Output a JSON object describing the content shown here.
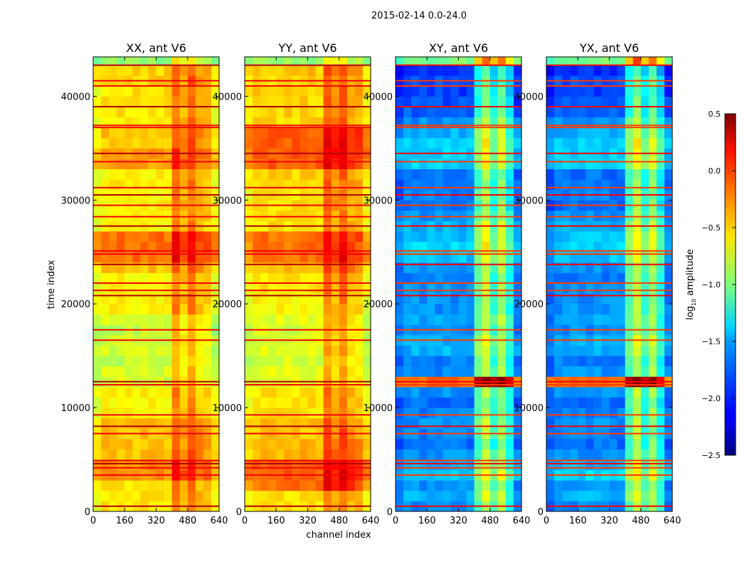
{
  "chart_data": {
    "type": "heatmap",
    "title": "2015-02-14 0.0-24.0",
    "xlabel": "channel index",
    "ylabel": "time index",
    "xlim": [
      0,
      640
    ],
    "ylim": [
      0,
      43800
    ],
    "xticks": [
      "0",
      "160",
      "320",
      "480",
      "640"
    ],
    "yticks": [
      "0",
      "10000",
      "20000",
      "30000",
      "40000"
    ],
    "colorbar": {
      "label": "log10 amplitude",
      "label_main": "log",
      "label_sub": "10",
      "label_rest": " amplitude",
      "range": [
        -2.5,
        0.5
      ],
      "colormap": "jet",
      "ticks": [
        "0.5",
        "0.0",
        "−0.5",
        "−1.0",
        "−1.5",
        "−2.0",
        "−2.5"
      ]
    },
    "time_bin": 1000,
    "channel_bin": 40,
    "panels": [
      {
        "title": "XX, ant V6",
        "row_levels": [
          -0.55,
          -0.55,
          -0.55,
          -0.3,
          -0.3,
          -0.45,
          -0.45,
          -0.45,
          -0.45,
          -0.6,
          -0.6,
          -0.6,
          -0.75,
          -0.75,
          -0.8,
          -0.75,
          -0.75,
          -0.8,
          -0.75,
          -0.6,
          -0.6,
          -0.6,
          -0.6,
          -0.45,
          -0.2,
          -0.2,
          -0.2,
          -0.6,
          -0.6,
          -0.6,
          -0.6,
          -0.6,
          -0.6,
          -0.35,
          -0.35,
          -0.45,
          -0.45,
          -0.55,
          -0.55,
          -0.55,
          -0.55,
          -0.5,
          -0.5,
          -0.95
        ],
        "channel_offsets": [
          -0.1,
          0,
          0,
          0,
          0,
          0,
          0,
          0,
          0,
          0,
          0.35,
          0.15,
          0.35,
          0.15,
          0.1,
          -0.1
        ],
        "flag_value": 0.15
      },
      {
        "title": "YY, ant V6",
        "row_levels": [
          -0.55,
          -0.55,
          -0.2,
          -0.15,
          -0.15,
          -0.4,
          -0.4,
          -0.45,
          -0.45,
          -0.55,
          -0.55,
          -0.55,
          -0.7,
          -0.7,
          -0.75,
          -0.7,
          -0.7,
          -0.75,
          -0.7,
          -0.6,
          -0.6,
          -0.55,
          -0.55,
          -0.4,
          -0.2,
          -0.2,
          -0.2,
          -0.55,
          -0.55,
          -0.55,
          -0.55,
          -0.5,
          -0.5,
          -0.15,
          -0.15,
          -0.15,
          -0.15,
          -0.5,
          -0.5,
          -0.5,
          -0.5,
          -0.5,
          -0.45,
          -0.95
        ],
        "channel_offsets": [
          -0.1,
          0,
          0,
          0,
          0,
          0,
          0,
          0,
          0,
          0,
          0.35,
          0.2,
          0.35,
          0.15,
          0.1,
          -0.1
        ],
        "flag_value": 0.15
      },
      {
        "title": "XY, ant V6",
        "row_levels": [
          -1.7,
          -1.6,
          -1.7,
          -1.5,
          -1.6,
          -1.7,
          -1.8,
          -1.75,
          -1.7,
          -1.75,
          -1.8,
          -1.7,
          -0.2,
          -1.7,
          -1.75,
          -1.6,
          -1.6,
          -1.7,
          -1.65,
          -1.7,
          -1.7,
          -1.7,
          -1.75,
          -1.7,
          -1.55,
          -1.5,
          -1.55,
          -1.6,
          -1.7,
          -1.8,
          -1.75,
          -1.8,
          -1.8,
          -1.5,
          -1.5,
          -1.5,
          -1.6,
          -1.7,
          -1.85,
          -1.9,
          -1.95,
          -1.9,
          -2.0,
          -1.0
        ],
        "channel_offsets": [
          -0.1,
          0,
          0,
          0,
          0,
          0,
          0,
          0,
          0,
          0,
          0.6,
          0.9,
          0.5,
          0.8,
          0.4,
          -0.05
        ],
        "flag_value": -0.05
      },
      {
        "title": "YX, ant V6",
        "row_levels": [
          -1.7,
          -1.6,
          -1.7,
          -1.5,
          -1.6,
          -1.7,
          -1.8,
          -1.75,
          -1.7,
          -1.75,
          -1.8,
          -1.7,
          -0.2,
          -1.7,
          -1.75,
          -1.6,
          -1.6,
          -1.7,
          -1.65,
          -1.7,
          -1.7,
          -1.7,
          -1.75,
          -1.7,
          -1.55,
          -1.5,
          -1.55,
          -1.6,
          -1.7,
          -1.8,
          -1.75,
          -1.8,
          -1.8,
          -1.5,
          -1.5,
          -1.5,
          -1.6,
          -1.7,
          -1.85,
          -1.9,
          -1.95,
          -1.9,
          -2.0,
          -1.0
        ],
        "channel_offsets": [
          -0.1,
          0,
          0,
          0,
          0,
          0,
          0,
          0,
          0,
          0,
          0.6,
          0.9,
          0.5,
          0.8,
          0.4,
          -0.05
        ],
        "flag_value": -0.05
      }
    ],
    "flag_times": [
      500,
      3500,
      4200,
      4600,
      4900,
      7500,
      8200,
      9300,
      12200,
      12500,
      16500,
      17500,
      20800,
      21300,
      22000,
      23800,
      24800,
      25100,
      27500,
      28400,
      29500,
      30500,
      31200,
      33700,
      34500,
      37000,
      37200,
      39000,
      41000,
      41500,
      43000
    ]
  }
}
